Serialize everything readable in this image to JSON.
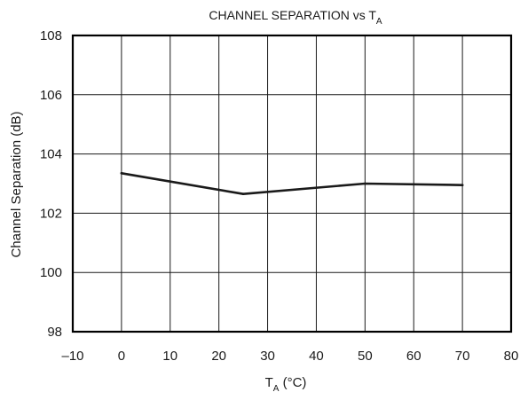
{
  "chart_data": {
    "type": "line",
    "title": {
      "main": "CHANNEL SEPARATION vs T",
      "sub": "A"
    },
    "xlabel": {
      "main": "T",
      "sub": "A",
      "suffix": " (°C)"
    },
    "ylabel": "Channel Separation (dB)",
    "xlim": [
      -10,
      80
    ],
    "ylim": [
      98,
      108
    ],
    "xticks": [
      -10,
      0,
      10,
      20,
      30,
      40,
      50,
      60,
      70,
      80
    ],
    "yticks": [
      98,
      100,
      102,
      104,
      106,
      108
    ],
    "xtick_labels": [
      "–10",
      "0",
      "10",
      "20",
      "30",
      "40",
      "50",
      "60",
      "70",
      "80"
    ],
    "ytick_labels": [
      "98",
      "100",
      "102",
      "104",
      "106",
      "108"
    ],
    "grid": true,
    "series": [
      {
        "color": "#1a1a1a",
        "x": [
          0,
          25,
          50,
          70
        ],
        "y": [
          103.35,
          102.65,
          103.0,
          102.95
        ]
      }
    ]
  }
}
